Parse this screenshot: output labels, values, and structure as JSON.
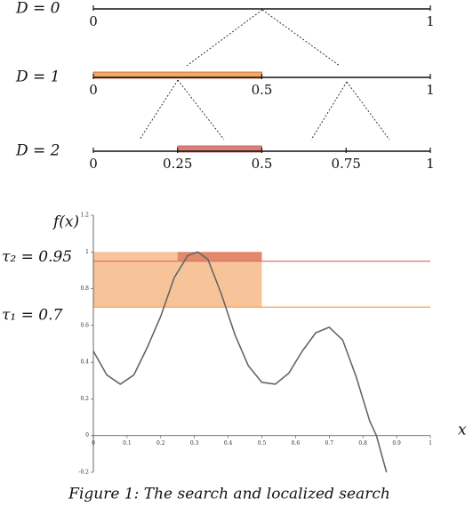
{
  "diagram": {
    "levels": [
      {
        "label": "D = 0",
        "ticks": [
          0,
          1
        ],
        "interval": null
      },
      {
        "label": "D = 1",
        "ticks": [
          0,
          0.5,
          1
        ],
        "interval": [
          0,
          0.5
        ],
        "color": "#f5a962"
      },
      {
        "label": "D = 2",
        "ticks": [
          0,
          0.25,
          0.5,
          0.75,
          1
        ],
        "interval": [
          0.25,
          0.5
        ],
        "color": "#d9807e"
      }
    ]
  },
  "chart_data": {
    "type": "line",
    "ylabel": "f(x)",
    "xlabel": "x",
    "color": "#666666",
    "x": [
      0,
      0.04,
      0.08,
      0.12,
      0.16,
      0.2,
      0.24,
      0.28,
      0.31,
      0.34,
      0.38,
      0.42,
      0.46,
      0.5,
      0.54,
      0.58,
      0.62,
      0.66,
      0.7,
      0.74,
      0.78,
      0.82,
      0.84,
      0.87
    ],
    "values": [
      0.46,
      0.33,
      0.28,
      0.33,
      0.48,
      0.65,
      0.86,
      0.98,
      1.0,
      0.96,
      0.77,
      0.55,
      0.38,
      0.29,
      0.28,
      0.34,
      0.46,
      0.56,
      0.59,
      0.52,
      0.32,
      0.08,
      0,
      -0.2
    ],
    "xlim": [
      0,
      1
    ],
    "ylim": [
      -0.2,
      1.2
    ],
    "xticks": [
      0,
      0.1,
      0.2,
      0.3,
      0.4,
      0.5,
      0.6,
      0.7,
      0.8,
      0.9,
      1
    ],
    "yticks": [
      -0.2,
      0,
      0.2,
      0.4,
      0.6,
      0.8,
      1,
      1.2
    ],
    "thresholds": [
      {
        "label": "τ₂ = 0.95",
        "value": 0.95,
        "color": "#e07070"
      },
      {
        "label": "τ₁ = 0.7",
        "value": 0.7,
        "color": "#f5a050"
      }
    ],
    "regions": [
      {
        "x": [
          0,
          0.5
        ],
        "y": [
          0.7,
          1.0
        ],
        "color": "#f7c49a"
      },
      {
        "x": [
          0.25,
          0.5
        ],
        "y": [
          0.95,
          1.0
        ],
        "color": "#e08a6a"
      }
    ]
  },
  "caption": "Figure 1: The search and localized search"
}
